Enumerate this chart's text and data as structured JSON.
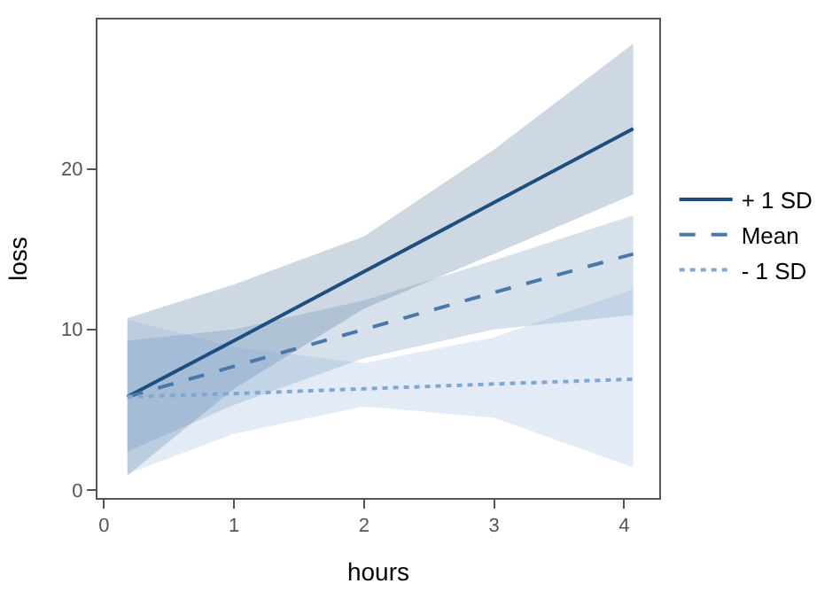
{
  "chart_data": {
    "type": "line",
    "xlabel": "hours",
    "ylabel": "loss",
    "xlim": [
      -0.05,
      4.27
    ],
    "ylim": [
      -0.5,
      29.3
    ],
    "xticks": [
      0,
      1,
      2,
      3,
      4
    ],
    "yticks": [
      0,
      10,
      20
    ],
    "legend": "right",
    "marker": "none",
    "series": [
      {
        "name": "+ 1 SD",
        "color": "#1c4f80",
        "line_style": "solid",
        "x": [
          0.18,
          1,
          2,
          3,
          4.07
        ],
        "values": [
          5.8,
          9.3,
          13.6,
          17.9,
          22.5
        ],
        "lower": [
          0.9,
          6.3,
          11.3,
          14.7,
          18.4
        ],
        "upper": [
          10.7,
          12.8,
          15.8,
          21.2,
          27.8
        ]
      },
      {
        "name": "Mean",
        "color": "#4a78a8",
        "line_style": "dashed",
        "x": [
          0.18,
          1,
          2,
          3,
          4.07
        ],
        "values": [
          5.8,
          7.7,
          10.0,
          12.3,
          14.7
        ],
        "lower": [
          2.4,
          5.3,
          8.2,
          10.0,
          10.9
        ],
        "upper": [
          9.3,
          10.0,
          11.8,
          14.3,
          17.1
        ]
      },
      {
        "name": "- 1 SD",
        "color": "#7fa7d4",
        "line_style": "dotted",
        "x": [
          0.18,
          1,
          2,
          3,
          4.07
        ],
        "values": [
          5.8,
          6.0,
          6.3,
          6.6,
          6.9
        ],
        "lower": [
          1.0,
          3.5,
          5.2,
          4.5,
          1.4
        ],
        "upper": [
          10.6,
          8.9,
          7.9,
          9.5,
          12.5
        ]
      }
    ]
  }
}
